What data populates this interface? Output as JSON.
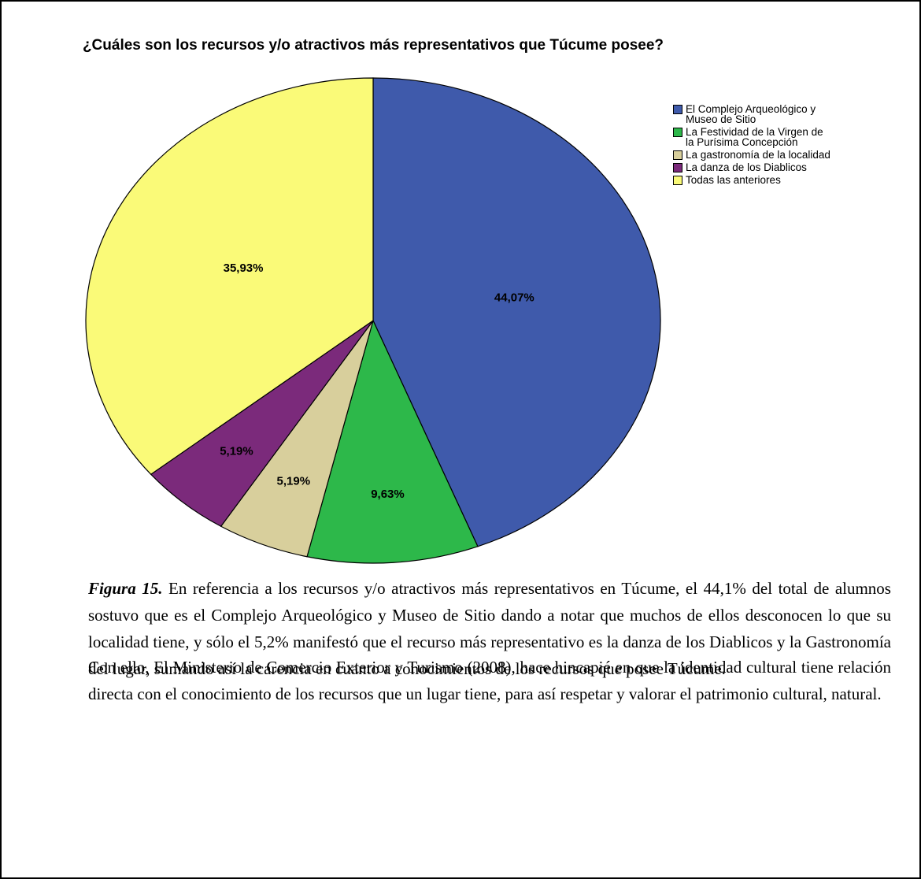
{
  "chart_data": {
    "type": "pie",
    "title": "¿Cuáles son los recursos y/o atractivos más representativos que Túcume posee?",
    "categories": [
      "El Complejo Arqueológico y Museo de Sitio",
      "La Festividad de la Virgen de la Purísima Concepción",
      "La gastronomía de la localidad",
      "La danza de los Diablicos",
      "Todas las anteriores"
    ],
    "values": [
      44.07,
      9.63,
      5.19,
      5.19,
      35.93
    ],
    "value_labels": [
      "44,07%",
      "9,63%",
      "5,19%",
      "5,19%",
      "35,93%"
    ],
    "colors": [
      "#3f5aab",
      "#2db84a",
      "#d8cf9c",
      "#7b2a7b",
      "#fafa78"
    ],
    "legend": "top-right"
  },
  "caption": {
    "label": "Figura 15.",
    "text": "En referencia a los recursos y/o atractivos más representativos en Túcume, el 44,1% del total de alumnos sostuvo que es el Complejo Arqueológico y Museo de Sitio dando a notar que muchos de ellos desconocen lo que su localidad tiene, y sólo el 5,2% manifestó que el recurso más representativo es la danza de los Diablicos y la Gastronomía del lugar, sumando así la carencia en cuanto a conocimientos de los recursos que posee Túcume."
  },
  "paragraphs": [
    "Con ello, El Ministerio de Comercio Exterior y Turismo (2008), hace hincapié en que la identidad cultural tiene relación directa con el conocimiento de los recursos que un lugar tiene, para así respetar y valorar el patrimonio cultural, natural."
  ]
}
